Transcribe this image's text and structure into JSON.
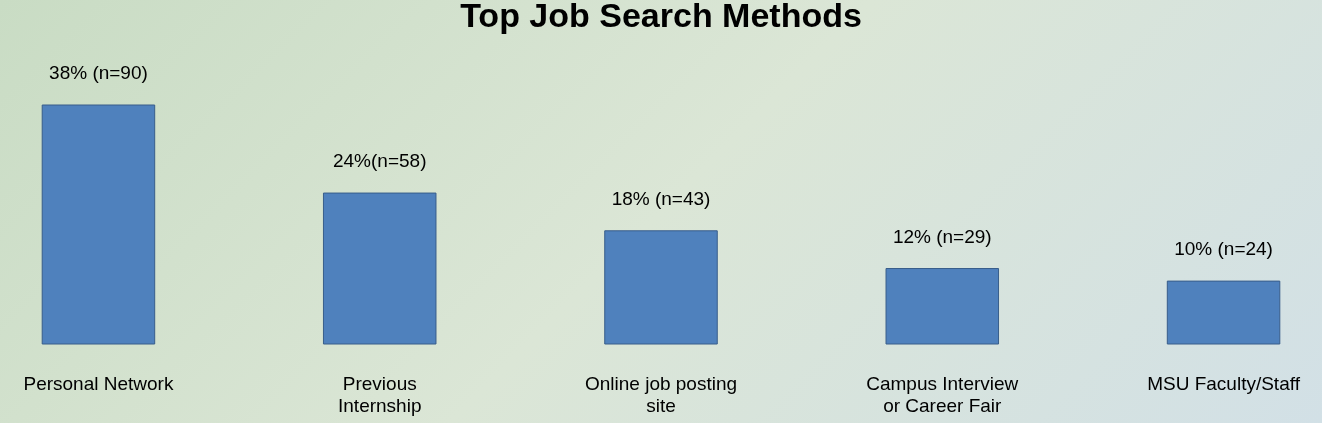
{
  "chart_data": {
    "type": "bar",
    "title": "Top Job Search Methods",
    "categories": [
      "Personal Network",
      "Previous Internship",
      "Online job posting site",
      "Campus Interview or Career Fair",
      "MSU Faculty/Staff"
    ],
    "values": [
      38,
      24,
      18,
      12,
      10
    ],
    "value_labels": [
      "38% (n=90)",
      "24%(n=58)",
      "18% (n=43)",
      "12% (n=29)",
      "10% (n=24)"
    ],
    "color": "#4f81bd"
  }
}
